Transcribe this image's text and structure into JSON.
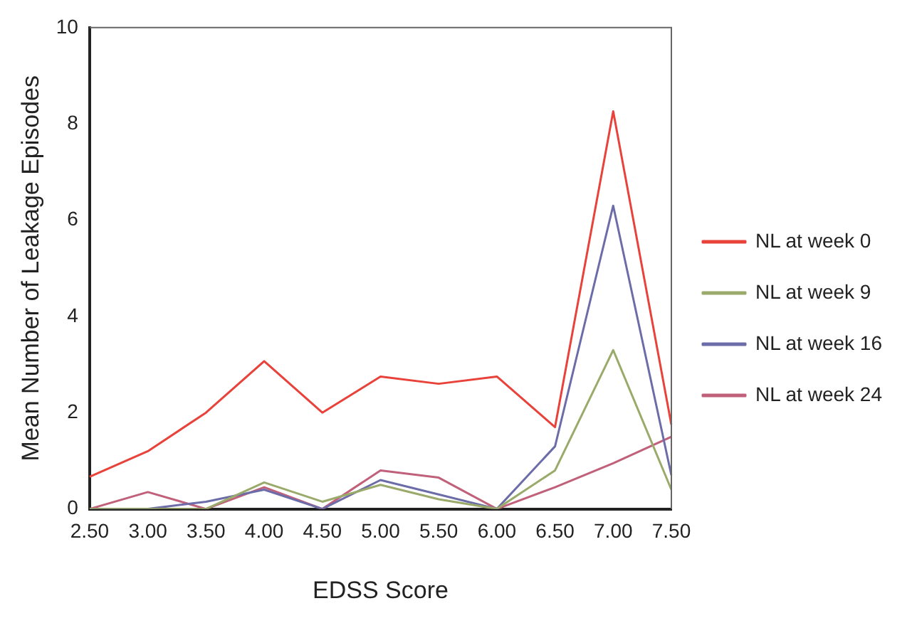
{
  "chart_data": {
    "type": "line",
    "xlabel": "EDSS Score",
    "ylabel": "Mean Number of Leakage Episodes",
    "categories": [
      "2.50",
      "3.00",
      "3.50",
      "4.00",
      "4.50",
      "5.00",
      "5.50",
      "6.00",
      "6.50",
      "7.00",
      "7.50"
    ],
    "series": [
      {
        "name": "NL at week 0",
        "color": "#e8423a",
        "values": [
          0.67,
          1.2,
          2.0,
          3.07,
          2.0,
          2.75,
          2.6,
          2.75,
          1.7,
          8.26,
          1.75
        ]
      },
      {
        "name": "NL at week 9",
        "color": "#9aaa6a",
        "values": [
          0,
          0,
          0,
          0.55,
          0.15,
          0.5,
          0.2,
          0,
          0.8,
          3.3,
          0.4
        ]
      },
      {
        "name": "NL at week 16",
        "color": "#6c6ca8",
        "values": [
          0,
          0,
          0.15,
          0.4,
          0,
          0.6,
          0.3,
          0,
          1.3,
          6.3,
          0.7
        ]
      },
      {
        "name": "NL at week 24",
        "color": "#c0607a",
        "values": [
          0,
          0.35,
          0,
          0.45,
          0,
          0.8,
          0.65,
          0,
          0.45,
          0.95,
          1.5
        ]
      }
    ],
    "ylim": [
      0,
      10
    ],
    "yticks": [
      0,
      2,
      4,
      6,
      8,
      10
    ],
    "grid": false,
    "legend": "right",
    "marker": "none",
    "line_style": "solid"
  }
}
